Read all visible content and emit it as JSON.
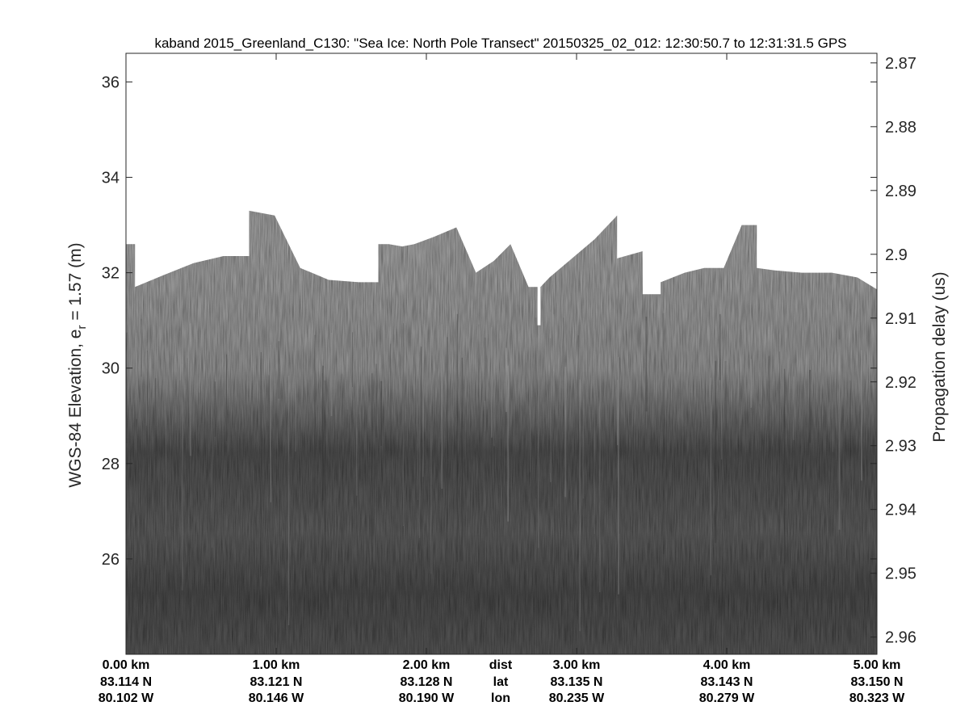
{
  "chart_data": {
    "type": "heatmap",
    "title": "kaband 2015_Greenland_C130: \"Sea Ice: North Pole Transect\"  20150325_02_012: 12:30:50.7 to 12:31:31.5 GPS",
    "ylabel_prefix": "WGS-84 Elevation, e",
    "ylabel_subscript": "r",
    "ylabel_suffix": " = 1.57 (m)",
    "y2label": "Propagation delay (us)",
    "ylim": [
      24,
      36.6
    ],
    "y2lim": [
      2.8685,
      2.9627
    ],
    "xlim": [
      0,
      5
    ],
    "y_ticks": [
      "36",
      "34",
      "32",
      "30",
      "28",
      "26"
    ],
    "y_tick_values": [
      36,
      34,
      32,
      30,
      28,
      26
    ],
    "y2_ticks": [
      "2.87",
      "2.88",
      "2.89",
      "2.9",
      "2.91",
      "2.92",
      "2.93",
      "2.94",
      "2.95",
      "2.96"
    ],
    "y2_tick_values": [
      2.87,
      2.88,
      2.89,
      2.9,
      2.91,
      2.92,
      2.93,
      2.94,
      2.95,
      2.96
    ],
    "x_tick_values": [
      0,
      1,
      2,
      3,
      4,
      5
    ],
    "x_labels": {
      "dist": [
        "0.00 km",
        "1.00 km",
        "2.00 km",
        "3.00 km",
        "4.00 km",
        "5.00 km"
      ],
      "lat": [
        "83.114 N",
        "83.121 N",
        "83.128 N",
        "83.135 N",
        "83.143 N",
        "83.150 N"
      ],
      "lon": [
        "80.102 W",
        "80.146 W",
        "80.190 W",
        "80.235 W",
        "80.279 W",
        "80.323 W"
      ]
    },
    "row_labels": [
      "dist",
      "lat",
      "lon"
    ],
    "surface_elevation": {
      "x": [
        0.0,
        0.06,
        0.06,
        0.25,
        0.45,
        0.65,
        0.82,
        0.82,
        0.99,
        1.16,
        1.35,
        1.55,
        1.68,
        1.68,
        1.75,
        1.84,
        1.92,
        2.05,
        2.2,
        2.33,
        2.33,
        2.45,
        2.56,
        2.68,
        2.68,
        2.74,
        2.74,
        2.76,
        2.76,
        2.82,
        2.97,
        3.12,
        3.27,
        3.27,
        3.44,
        3.44,
        3.56,
        3.56,
        3.72,
        3.85,
        3.98,
        4.1,
        4.2,
        4.2,
        4.32,
        4.5,
        4.7,
        4.87,
        5.0
      ],
      "elevation": [
        32.6,
        32.6,
        31.7,
        31.95,
        32.2,
        32.35,
        32.35,
        33.3,
        33.2,
        32.1,
        31.85,
        31.8,
        31.8,
        32.6,
        32.6,
        32.55,
        32.6,
        32.75,
        32.95,
        32.0,
        32.0,
        32.25,
        32.6,
        31.7,
        31.7,
        31.7,
        30.9,
        30.9,
        31.7,
        31.9,
        32.3,
        32.7,
        33.2,
        32.3,
        32.45,
        31.55,
        31.55,
        31.8,
        32.0,
        32.1,
        32.1,
        33.0,
        33.0,
        32.1,
        32.05,
        32.0,
        32.0,
        31.9,
        31.65
      ]
    },
    "colormap": "gray",
    "colors": {
      "background": "#ffffff",
      "echo_bright": "#9a9a9a",
      "echo_dark": "#444444",
      "axis": "#262626"
    }
  }
}
